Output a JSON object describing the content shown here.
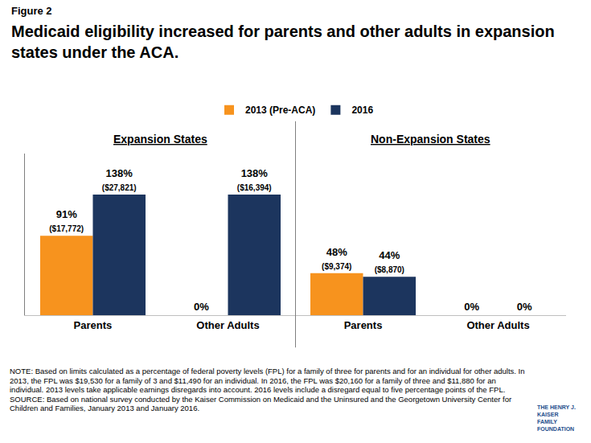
{
  "figure_label": "Figure 2",
  "title": "Medicaid eligibility increased for parents and other adults in expansion states under the ACA.",
  "chart_data": [
    {
      "type": "bar",
      "title": "Expansion States",
      "categories": [
        "Parents",
        "Other Adults"
      ],
      "series": [
        {
          "name": "2013 (Pre-ACA)",
          "color": "#F7931E",
          "values": [
            91,
            0
          ],
          "value_labels": [
            "91%\n($17,772)",
            "0%"
          ]
        },
        {
          "name": "2016",
          "color": "#1C355E",
          "values": [
            138,
            138
          ],
          "value_labels": [
            "138%\n($27,821)",
            "138%\n($16,394)"
          ]
        }
      ],
      "ylim": [
        0,
        185
      ],
      "yticks": [],
      "grid": false,
      "data_labels": true,
      "tick_labels": "x",
      "legend": "top"
    },
    {
      "type": "bar",
      "title": "Non-Expansion States",
      "categories": [
        "Parents",
        "Other Adults"
      ],
      "series": [
        {
          "name": "2013 (Pre-ACA)",
          "color": "#F7931E",
          "values": [
            48,
            0
          ],
          "value_labels": [
            "48%\n($9,374)",
            "0%"
          ]
        },
        {
          "name": "2016",
          "color": "#1C355E",
          "values": [
            44,
            0
          ],
          "value_labels": [
            "44%\n($8,870)",
            "0%"
          ]
        }
      ],
      "ylim": [
        0,
        185
      ],
      "yticks": [],
      "grid": false,
      "data_labels": true,
      "tick_labels": "x"
    }
  ],
  "note": "NOTE: Based on limits calculated as a percentage of federal poverty levels (FPL) for a family of three for parents and for an individual for other adults. In 2013,  the FPL was $19,530  for a family of 3 and $11,490  for an individual. In 2016,  the FPL was $20,160  for a family of three and $11,880  for an individual.  2013 levels take applicable earnings disregards into account. 2016 levels include a disregard equal to five percentage points of the FPL.",
  "source": "SOURCE: Based on national survey conducted by the Kaiser Commission on Medicaid and the Uninsured and the Georgetown University Center for Children and Families, January 2013 and January 2016.",
  "logo": [
    "THE HENRY J.",
    "KAISER",
    "FAMILY",
    "FOUNDATION"
  ]
}
